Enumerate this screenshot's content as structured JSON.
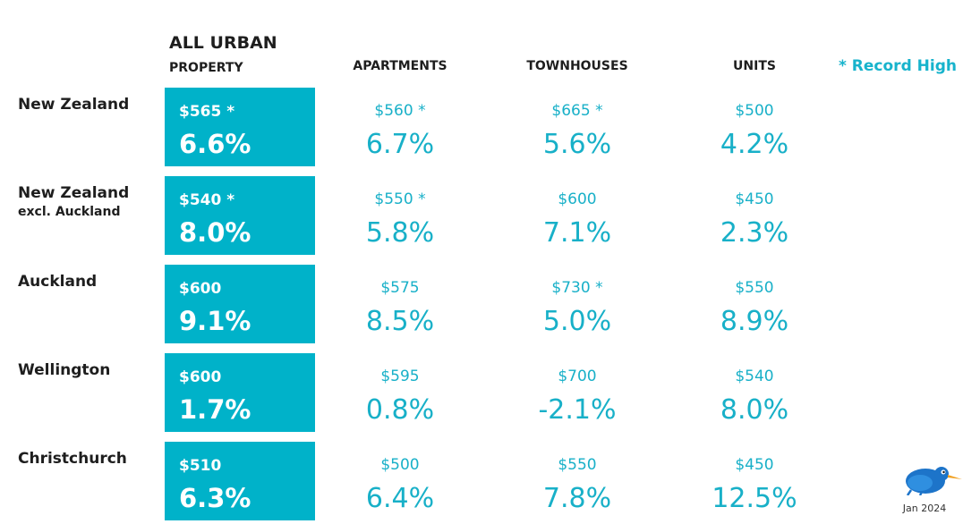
{
  "header": {
    "title": "ALL URBAN",
    "subtitle": "PROPERTY",
    "columns": [
      "APARTMENTS",
      "TOWNHOUSES",
      "UNITS"
    ],
    "record_note": "* Record High"
  },
  "colors": {
    "accent": "#00b2c9",
    "text_accent": "#18b0c8",
    "dark": "#1e1e1e"
  },
  "chart_data": {
    "type": "table",
    "columns": [
      "ALL URBAN PROPERTY",
      "APARTMENTS",
      "TOWNHOUSES",
      "UNITS"
    ],
    "rows": [
      {
        "region": "New Zealand",
        "region_sub": "",
        "cells": [
          {
            "price": "$565 *",
            "pct": "6.6%"
          },
          {
            "price": "$560 *",
            "pct": "6.7%"
          },
          {
            "price": "$665 *",
            "pct": "5.6%"
          },
          {
            "price": "$500",
            "pct": "4.2%"
          }
        ]
      },
      {
        "region": "New Zealand",
        "region_sub": "excl. Auckland",
        "cells": [
          {
            "price": "$540 *",
            "pct": "8.0%"
          },
          {
            "price": "$550 *",
            "pct": "5.8%"
          },
          {
            "price": "$600",
            "pct": "7.1%"
          },
          {
            "price": "$450",
            "pct": "2.3%"
          }
        ]
      },
      {
        "region": "Auckland",
        "region_sub": "",
        "cells": [
          {
            "price": "$600",
            "pct": "9.1%"
          },
          {
            "price": "$575",
            "pct": "8.5%"
          },
          {
            "price": "$730 *",
            "pct": "5.0%"
          },
          {
            "price": "$550",
            "pct": "8.9%"
          }
        ]
      },
      {
        "region": "Wellington",
        "region_sub": "",
        "cells": [
          {
            "price": "$600",
            "pct": "1.7%"
          },
          {
            "price": "$595",
            "pct": "0.8%"
          },
          {
            "price": "$700",
            "pct": "-2.1%"
          },
          {
            "price": "$540",
            "pct": "8.0%"
          }
        ]
      },
      {
        "region": "Christchurch",
        "region_sub": "",
        "cells": [
          {
            "price": "$510",
            "pct": "6.3%"
          },
          {
            "price": "$500",
            "pct": "6.4%"
          },
          {
            "price": "$550",
            "pct": "7.8%"
          },
          {
            "price": "$450",
            "pct": "12.5%"
          }
        ]
      }
    ]
  },
  "footer": {
    "date": "Jan 2024",
    "logo_icon": "kiwi-bird-icon"
  }
}
